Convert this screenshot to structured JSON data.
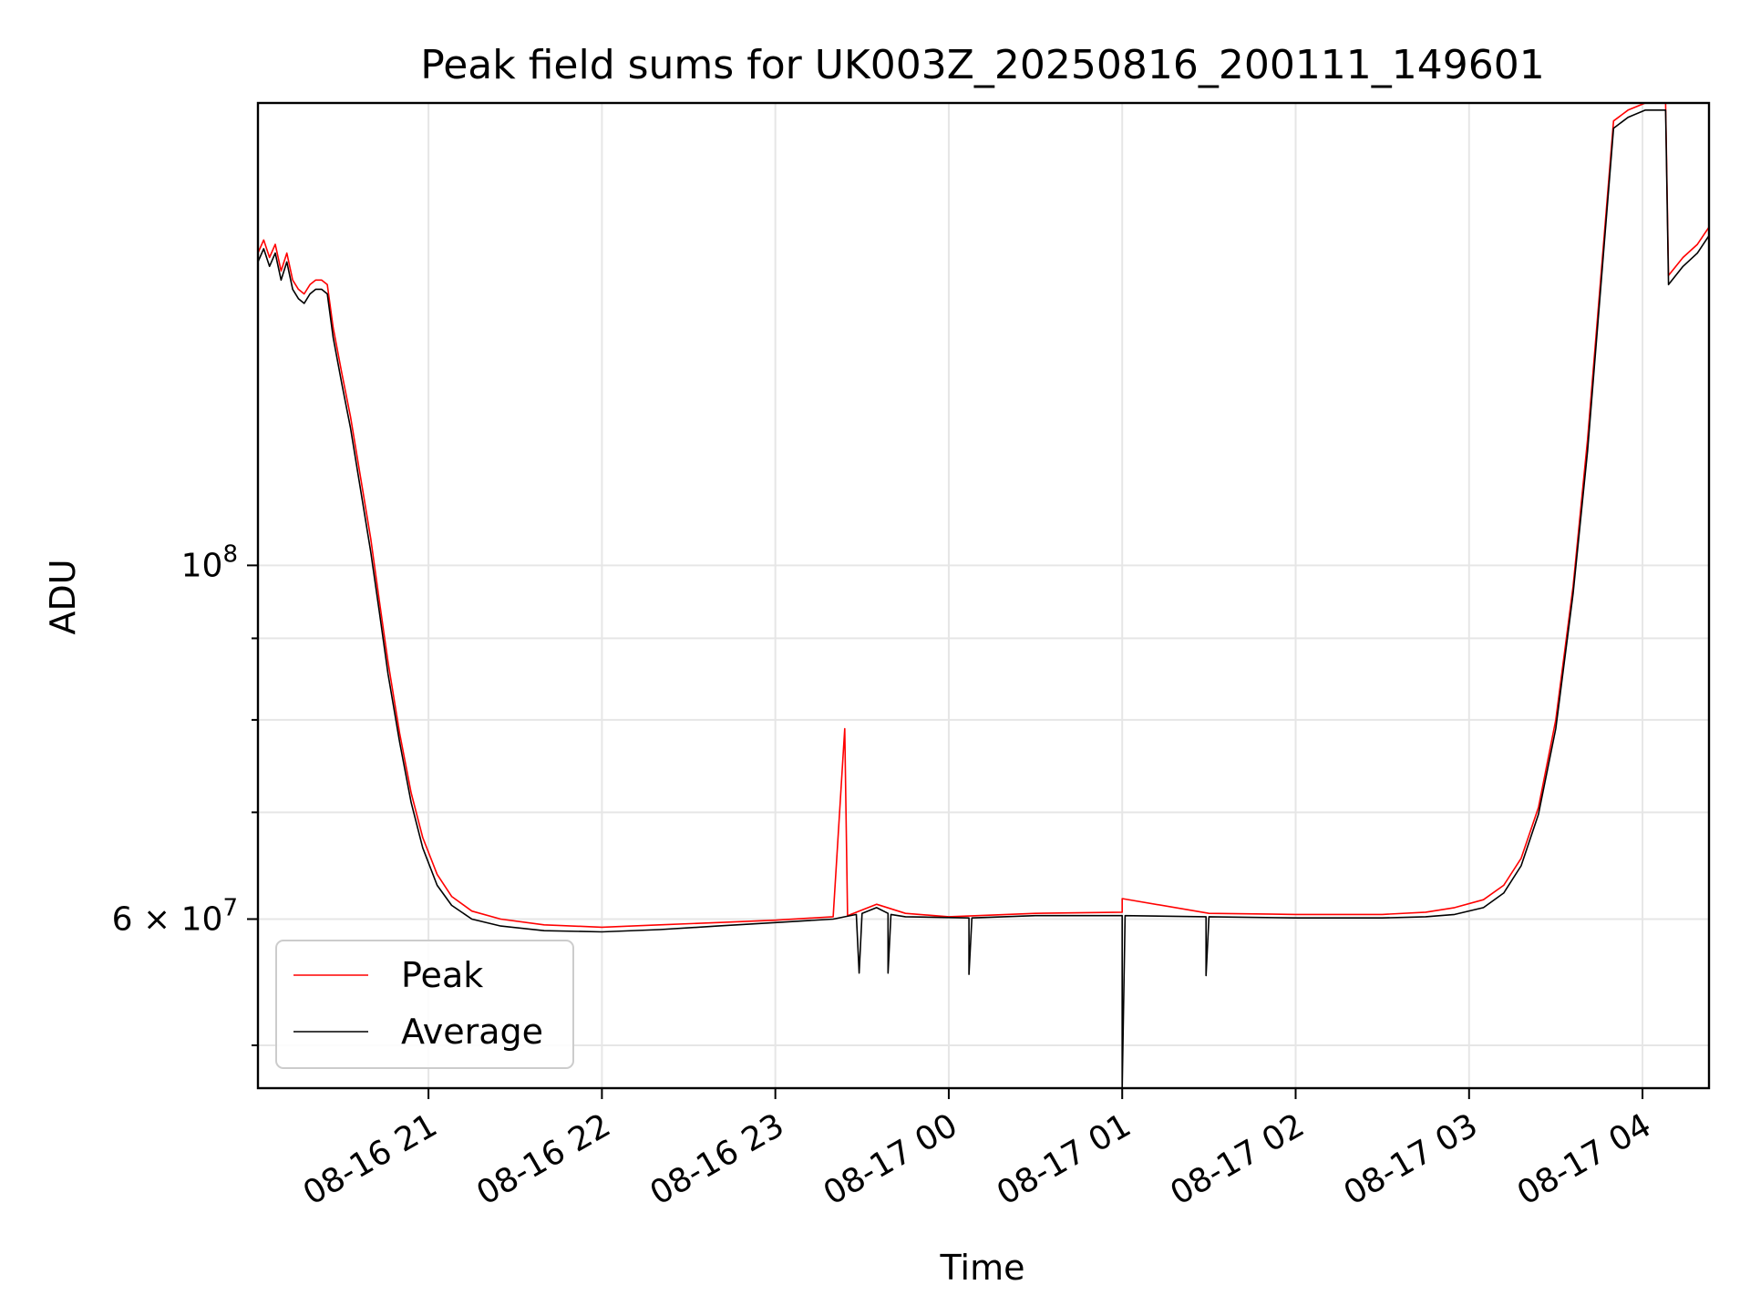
{
  "chart_data": {
    "type": "line",
    "title": "Peak field sums for UK003Z_20250816_200111_149601",
    "xlabel": "Time",
    "ylabel": "ADU",
    "y_scale": "log",
    "x_type": "datetime",
    "xlim": [
      "2025-08-16 20:01",
      "2025-08-17 04:23"
    ],
    "ylim": [
      47000000,
      195000000
    ],
    "x_ticks": [
      {
        "t": "2025-08-16 21:00",
        "label": "08-16 21"
      },
      {
        "t": "2025-08-16 22:00",
        "label": "08-16 22"
      },
      {
        "t": "2025-08-16 23:00",
        "label": "08-16 23"
      },
      {
        "t": "2025-08-17 00:00",
        "label": "08-17 00"
      },
      {
        "t": "2025-08-17 01:00",
        "label": "08-17 01"
      },
      {
        "t": "2025-08-17 02:00",
        "label": "08-17 02"
      },
      {
        "t": "2025-08-17 03:00",
        "label": "08-17 03"
      },
      {
        "t": "2025-08-17 04:00",
        "label": "08-17 04"
      }
    ],
    "y_major_ticks": [
      {
        "value": 100000000,
        "base": "10",
        "exp": "8"
      },
      {
        "value": 60000000,
        "mantissa": "6",
        "base": "10",
        "exp": "7"
      }
    ],
    "y_minor_ticks": [
      50000000,
      70000000,
      80000000,
      90000000
    ],
    "grid": true,
    "legend_position": "lower-left",
    "series": [
      {
        "name": "Peak",
        "color": "#ff0000",
        "points": [
          [
            "2025-08-16 20:01",
            157000000
          ],
          [
            "2025-08-16 20:03",
            160000000
          ],
          [
            "2025-08-16 20:05",
            156000000
          ],
          [
            "2025-08-16 20:07",
            159000000
          ],
          [
            "2025-08-16 20:09",
            153000000
          ],
          [
            "2025-08-16 20:11",
            157000000
          ],
          [
            "2025-08-16 20:13",
            151000000
          ],
          [
            "2025-08-16 20:15",
            149000000
          ],
          [
            "2025-08-16 20:17",
            148000000
          ],
          [
            "2025-08-16 20:19",
            150000000
          ],
          [
            "2025-08-16 20:21",
            151000000
          ],
          [
            "2025-08-16 20:23",
            151000000
          ],
          [
            "2025-08-16 20:25",
            150000000
          ],
          [
            "2025-08-16 20:27",
            141000000
          ],
          [
            "2025-08-16 20:30",
            132000000
          ],
          [
            "2025-08-16 20:33",
            124000000
          ],
          [
            "2025-08-16 20:36",
            115000000
          ],
          [
            "2025-08-16 20:40",
            104000000
          ],
          [
            "2025-08-16 20:43",
            95000000
          ],
          [
            "2025-08-16 20:46",
            87000000
          ],
          [
            "2025-08-16 20:50",
            78500000
          ],
          [
            "2025-08-16 20:54",
            72000000
          ],
          [
            "2025-08-16 20:58",
            67500000
          ],
          [
            "2025-08-16 21:03",
            64000000
          ],
          [
            "2025-08-16 21:08",
            62000000
          ],
          [
            "2025-08-16 21:15",
            60700000
          ],
          [
            "2025-08-16 21:25",
            60000000
          ],
          [
            "2025-08-16 21:40",
            59500000
          ],
          [
            "2025-08-16 22:00",
            59300000
          ],
          [
            "2025-08-16 22:20",
            59500000
          ],
          [
            "2025-08-16 22:40",
            59700000
          ],
          [
            "2025-08-16 23:00",
            59900000
          ],
          [
            "2025-08-16 23:20",
            60200000
          ],
          [
            "2025-08-16 23:24",
            79000000
          ],
          [
            "2025-08-16 23:25",
            60300000
          ],
          [
            "2025-08-16 23:35",
            61300000
          ],
          [
            "2025-08-16 23:45",
            60500000
          ],
          [
            "2025-08-17 00:00",
            60200000
          ],
          [
            "2025-08-17 00:30",
            60500000
          ],
          [
            "2025-08-17 01:00",
            60600000
          ],
          [
            "2025-08-17 01:00",
            61800000
          ],
          [
            "2025-08-17 01:30",
            60500000
          ],
          [
            "2025-08-17 02:00",
            60400000
          ],
          [
            "2025-08-17 02:30",
            60400000
          ],
          [
            "2025-08-17 02:45",
            60600000
          ],
          [
            "2025-08-17 02:55",
            61000000
          ],
          [
            "2025-08-17 03:05",
            61700000
          ],
          [
            "2025-08-17 03:12",
            63000000
          ],
          [
            "2025-08-17 03:18",
            65500000
          ],
          [
            "2025-08-17 03:24",
            70500000
          ],
          [
            "2025-08-17 03:30",
            80000000
          ],
          [
            "2025-08-17 03:36",
            97000000
          ],
          [
            "2025-08-17 03:41",
            120000000
          ],
          [
            "2025-08-17 03:46",
            155000000
          ],
          [
            "2025-08-17 03:50",
            190000000
          ],
          [
            "2025-08-17 03:55",
            193000000
          ],
          [
            "2025-08-17 04:01",
            195000000
          ],
          [
            "2025-08-17 04:08",
            195000000
          ],
          [
            "2025-08-17 04:09",
            152000000
          ],
          [
            "2025-08-17 04:14",
            156000000
          ],
          [
            "2025-08-17 04:19",
            159000000
          ],
          [
            "2025-08-17 04:23",
            163000000
          ]
        ]
      },
      {
        "name": "Average",
        "color": "#000000",
        "points": [
          [
            "2025-08-16 20:01",
            155000000
          ],
          [
            "2025-08-16 20:03",
            158000000
          ],
          [
            "2025-08-16 20:05",
            154000000
          ],
          [
            "2025-08-16 20:07",
            157000000
          ],
          [
            "2025-08-16 20:09",
            151000000
          ],
          [
            "2025-08-16 20:11",
            155000000
          ],
          [
            "2025-08-16 20:13",
            149000000
          ],
          [
            "2025-08-16 20:15",
            147000000
          ],
          [
            "2025-08-16 20:17",
            146000000
          ],
          [
            "2025-08-16 20:19",
            148000000
          ],
          [
            "2025-08-16 20:21",
            149000000
          ],
          [
            "2025-08-16 20:23",
            149000000
          ],
          [
            "2025-08-16 20:25",
            148000000
          ],
          [
            "2025-08-16 20:27",
            139000000
          ],
          [
            "2025-08-16 20:30",
            130000000
          ],
          [
            "2025-08-16 20:33",
            122000000
          ],
          [
            "2025-08-16 20:36",
            113000000
          ],
          [
            "2025-08-16 20:40",
            102000000
          ],
          [
            "2025-08-16 20:43",
            93500000
          ],
          [
            "2025-08-16 20:46",
            85500000
          ],
          [
            "2025-08-16 20:50",
            77500000
          ],
          [
            "2025-08-16 20:54",
            71000000
          ],
          [
            "2025-08-16 20:58",
            66500000
          ],
          [
            "2025-08-16 21:03",
            63000000
          ],
          [
            "2025-08-16 21:08",
            61200000
          ],
          [
            "2025-08-16 21:15",
            60000000
          ],
          [
            "2025-08-16 21:25",
            59400000
          ],
          [
            "2025-08-16 21:40",
            59000000
          ],
          [
            "2025-08-16 22:00",
            58900000
          ],
          [
            "2025-08-16 22:20",
            59100000
          ],
          [
            "2025-08-16 22:40",
            59400000
          ],
          [
            "2025-08-16 23:00",
            59700000
          ],
          [
            "2025-08-16 23:20",
            60000000
          ],
          [
            "2025-08-16 23:28",
            60400000
          ],
          [
            "2025-08-16 23:29",
            55500000
          ],
          [
            "2025-08-16 23:30",
            60500000
          ],
          [
            "2025-08-16 23:35",
            61000000
          ],
          [
            "2025-08-16 23:39",
            60500000
          ],
          [
            "2025-08-16 23:39",
            55500000
          ],
          [
            "2025-08-16 23:40",
            60400000
          ],
          [
            "2025-08-16 23:45",
            60200000
          ],
          [
            "2025-08-17 00:07",
            60100000
          ],
          [
            "2025-08-17 00:07",
            55400000
          ],
          [
            "2025-08-17 00:08",
            60100000
          ],
          [
            "2025-08-17 00:30",
            60300000
          ],
          [
            "2025-08-17 01:00",
            60300000
          ],
          [
            "2025-08-17 01:00",
            47000000
          ],
          [
            "2025-08-17 01:01",
            60300000
          ],
          [
            "2025-08-17 01:29",
            60200000
          ],
          [
            "2025-08-17 01:29",
            55300000
          ],
          [
            "2025-08-17 01:30",
            60200000
          ],
          [
            "2025-08-17 02:00",
            60100000
          ],
          [
            "2025-08-17 02:30",
            60100000
          ],
          [
            "2025-08-17 02:45",
            60200000
          ],
          [
            "2025-08-17 02:55",
            60400000
          ],
          [
            "2025-08-17 03:05",
            61000000
          ],
          [
            "2025-08-17 03:12",
            62300000
          ],
          [
            "2025-08-17 03:18",
            64800000
          ],
          [
            "2025-08-17 03:24",
            69800000
          ],
          [
            "2025-08-17 03:30",
            79000000
          ],
          [
            "2025-08-17 03:36",
            96000000
          ],
          [
            "2025-08-17 03:41",
            118000000
          ],
          [
            "2025-08-17 03:46",
            153000000
          ],
          [
            "2025-08-17 03:50",
            188000000
          ],
          [
            "2025-08-17 03:55",
            191000000
          ],
          [
            "2025-08-17 04:01",
            193000000
          ],
          [
            "2025-08-17 04:08",
            193000000
          ],
          [
            "2025-08-17 04:09",
            150000000
          ],
          [
            "2025-08-17 04:14",
            154000000
          ],
          [
            "2025-08-17 04:19",
            157000000
          ],
          [
            "2025-08-17 04:23",
            161000000
          ]
        ]
      }
    ]
  }
}
